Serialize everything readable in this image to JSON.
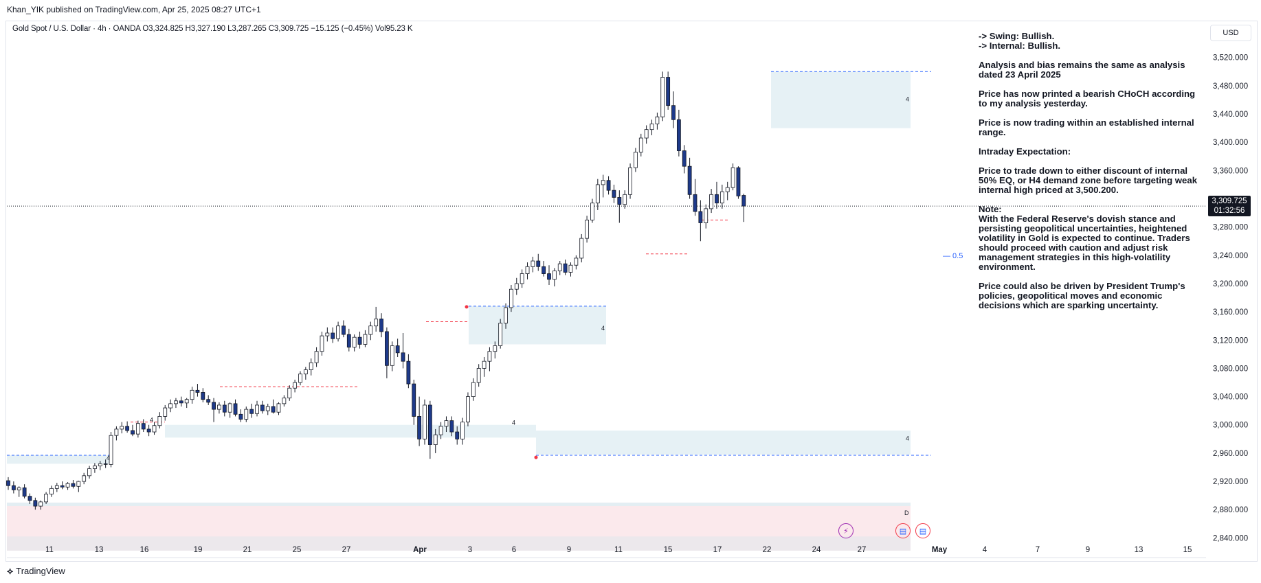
{
  "header": {
    "publisher_line": "Khan_YIK published on TradingView.com, Apr 25, 2025 08:27 UTC+1",
    "legend": "Gold Spot / U.S. Dollar · 4h · OANDA  O3,324.825  H3,327.190  L3,287.265  C3,309.725  −15.125 (−0.45%)  Vol95.23 K",
    "currency": "USD"
  },
  "price_tag": {
    "price": "3,309.725",
    "countdown": "01:32:56"
  },
  "notes": [
    "-> Swing:  Bullish.\n-> Internal:  Bullish.",
    "Analysis and bias remains the same as analysis dated 23 April 2025",
    "Price has now printed a bearish CHoCH according to my analysis yesterday.",
    "Price is now trading within an established internal range.",
    "Intraday Expectation:",
    "Price to trade down to either discount of internal 50% EQ, or H4 demand zone before targeting weak internal high priced at 3,500.200.",
    "Note:\nWith the Federal Reserve's dovish stance and persisting geopolitical uncertainties, heightened volatility in Gold is expected to continue. Traders should proceed with caution and adjust risk management strategies in this high-volatility environment.",
    "Price could also be driven by President Trump's policies, geopolitical moves and economic decisions which are sparking uncertainty."
  ],
  "footer": {
    "brand": "TradingView"
  },
  "colors": {
    "bull_body": "#ffffff",
    "bear_body": "#1e3a8a",
    "wick": "#131722",
    "zone": "#e6f1f5",
    "zone_pink": "#fbe9ec",
    "dashed_blue": "#2962ff",
    "dashed_red": "#f23645"
  },
  "chart_data": {
    "type": "candlestick",
    "symbol": "Gold Spot / U.S. Dollar",
    "timeframe": "4h",
    "y_ticks": [
      3520,
      3480,
      3440,
      3400,
      3360,
      3320,
      3280,
      3240,
      3200,
      3160,
      3120,
      3080,
      3040,
      3000,
      2960,
      2920,
      2880,
      2840
    ],
    "y_tick_labels": [
      "3,520.000",
      "3,480.000",
      "3,440.000",
      "3,400.000",
      "3,360.000",
      "3,320.000",
      "3,280.000",
      "3,240.000",
      "3,200.000",
      "3,160.000",
      "3,120.000",
      "3,080.000",
      "3,040.000",
      "3,000.000",
      "2,960.000",
      "2,920.000",
      "2,880.000",
      "2,840.000"
    ],
    "ylim": [
      2818,
      3545
    ],
    "x_tick_labels": [
      "11",
      "13",
      "16",
      "19",
      "21",
      "25",
      "27",
      "Apr",
      "3",
      "6",
      "9",
      "11",
      "15",
      "17",
      "22",
      "24",
      "27",
      "May",
      "4",
      "7",
      "9",
      "13",
      "15"
    ],
    "x_tick_bold": [
      "Apr",
      "May"
    ],
    "current_price": 3309.725,
    "annotations": {
      "eq_label": "0.5",
      "marker_4": "4",
      "marker_d": "D"
    },
    "candles": [
      {
        "o": 2921,
        "h": 2926,
        "l": 2908,
        "c": 2914
      },
      {
        "o": 2914,
        "h": 2920,
        "l": 2903,
        "c": 2908
      },
      {
        "o": 2908,
        "h": 2913,
        "l": 2898,
        "c": 2911
      },
      {
        "o": 2911,
        "h": 2916,
        "l": 2896,
        "c": 2899
      },
      {
        "o": 2899,
        "h": 2903,
        "l": 2888,
        "c": 2893
      },
      {
        "o": 2893,
        "h": 2897,
        "l": 2880,
        "c": 2885
      },
      {
        "o": 2885,
        "h": 2893,
        "l": 2880,
        "c": 2891
      },
      {
        "o": 2891,
        "h": 2905,
        "l": 2888,
        "c": 2902
      },
      {
        "o": 2902,
        "h": 2914,
        "l": 2898,
        "c": 2910
      },
      {
        "o": 2910,
        "h": 2918,
        "l": 2905,
        "c": 2914
      },
      {
        "o": 2914,
        "h": 2920,
        "l": 2909,
        "c": 2912
      },
      {
        "o": 2912,
        "h": 2919,
        "l": 2908,
        "c": 2917
      },
      {
        "o": 2917,
        "h": 2922,
        "l": 2910,
        "c": 2913
      },
      {
        "o": 2913,
        "h": 2921,
        "l": 2905,
        "c": 2920
      },
      {
        "o": 2920,
        "h": 2932,
        "l": 2916,
        "c": 2928
      },
      {
        "o": 2928,
        "h": 2942,
        "l": 2924,
        "c": 2938
      },
      {
        "o": 2938,
        "h": 2946,
        "l": 2932,
        "c": 2942
      },
      {
        "o": 2942,
        "h": 2949,
        "l": 2936,
        "c": 2945
      },
      {
        "o": 2945,
        "h": 2951,
        "l": 2939,
        "c": 2944
      },
      {
        "o": 2944,
        "h": 2990,
        "l": 2940,
        "c": 2985
      },
      {
        "o": 2985,
        "h": 2998,
        "l": 2978,
        "c": 2994
      },
      {
        "o": 2994,
        "h": 3004,
        "l": 2988,
        "c": 2998
      },
      {
        "o": 2998,
        "h": 3005,
        "l": 2989,
        "c": 2992
      },
      {
        "o": 2992,
        "h": 3000,
        "l": 2984,
        "c": 2987
      },
      {
        "o": 2987,
        "h": 3006,
        "l": 2982,
        "c": 3002
      },
      {
        "o": 3002,
        "h": 3008,
        "l": 2990,
        "c": 2994
      },
      {
        "o": 2994,
        "h": 3000,
        "l": 2984,
        "c": 2990
      },
      {
        "o": 2990,
        "h": 3004,
        "l": 2986,
        "c": 2999
      },
      {
        "o": 2999,
        "h": 3018,
        "l": 2995,
        "c": 3012
      },
      {
        "o": 3012,
        "h": 3028,
        "l": 3006,
        "c": 3024
      },
      {
        "o": 3024,
        "h": 3036,
        "l": 3018,
        "c": 3030
      },
      {
        "o": 3030,
        "h": 3038,
        "l": 3024,
        "c": 3034
      },
      {
        "o": 3034,
        "h": 3040,
        "l": 3026,
        "c": 3031
      },
      {
        "o": 3031,
        "h": 3038,
        "l": 3024,
        "c": 3036
      },
      {
        "o": 3036,
        "h": 3054,
        "l": 3030,
        "c": 3049
      },
      {
        "o": 3049,
        "h": 3058,
        "l": 3040,
        "c": 3046
      },
      {
        "o": 3046,
        "h": 3052,
        "l": 3032,
        "c": 3036
      },
      {
        "o": 3036,
        "h": 3042,
        "l": 3028,
        "c": 3032
      },
      {
        "o": 3032,
        "h": 3038,
        "l": 3004,
        "c": 3022
      },
      {
        "o": 3022,
        "h": 3032,
        "l": 3016,
        "c": 3028
      },
      {
        "o": 3028,
        "h": 3034,
        "l": 3012,
        "c": 3018
      },
      {
        "o": 3018,
        "h": 3032,
        "l": 3010,
        "c": 3030
      },
      {
        "o": 3030,
        "h": 3036,
        "l": 3012,
        "c": 3015
      },
      {
        "o": 3015,
        "h": 3022,
        "l": 3004,
        "c": 3008
      },
      {
        "o": 3008,
        "h": 3026,
        "l": 3004,
        "c": 3022
      },
      {
        "o": 3022,
        "h": 3030,
        "l": 3010,
        "c": 3016
      },
      {
        "o": 3016,
        "h": 3034,
        "l": 3012,
        "c": 3028
      },
      {
        "o": 3028,
        "h": 3034,
        "l": 3016,
        "c": 3020
      },
      {
        "o": 3020,
        "h": 3030,
        "l": 3014,
        "c": 3026
      },
      {
        "o": 3026,
        "h": 3036,
        "l": 3016,
        "c": 3018
      },
      {
        "o": 3018,
        "h": 3032,
        "l": 3014,
        "c": 3030
      },
      {
        "o": 3030,
        "h": 3042,
        "l": 3026,
        "c": 3038
      },
      {
        "o": 3038,
        "h": 3056,
        "l": 3034,
        "c": 3052
      },
      {
        "o": 3052,
        "h": 3064,
        "l": 3046,
        "c": 3060
      },
      {
        "o": 3060,
        "h": 3076,
        "l": 3056,
        "c": 3072
      },
      {
        "o": 3072,
        "h": 3082,
        "l": 3064,
        "c": 3078
      },
      {
        "o": 3078,
        "h": 3094,
        "l": 3070,
        "c": 3088
      },
      {
        "o": 3088,
        "h": 3110,
        "l": 3082,
        "c": 3104
      },
      {
        "o": 3104,
        "h": 3132,
        "l": 3098,
        "c": 3126
      },
      {
        "o": 3126,
        "h": 3138,
        "l": 3118,
        "c": 3130
      },
      {
        "o": 3130,
        "h": 3138,
        "l": 3116,
        "c": 3122
      },
      {
        "o": 3122,
        "h": 3146,
        "l": 3118,
        "c": 3140
      },
      {
        "o": 3140,
        "h": 3148,
        "l": 3124,
        "c": 3128
      },
      {
        "o": 3128,
        "h": 3136,
        "l": 3104,
        "c": 3110
      },
      {
        "o": 3110,
        "h": 3128,
        "l": 3104,
        "c": 3124
      },
      {
        "o": 3124,
        "h": 3132,
        "l": 3108,
        "c": 3114
      },
      {
        "o": 3114,
        "h": 3134,
        "l": 3110,
        "c": 3128
      },
      {
        "o": 3128,
        "h": 3146,
        "l": 3120,
        "c": 3140
      },
      {
        "o": 3140,
        "h": 3167,
        "l": 3132,
        "c": 3150
      },
      {
        "o": 3150,
        "h": 3158,
        "l": 3124,
        "c": 3132
      },
      {
        "o": 3132,
        "h": 3138,
        "l": 3066,
        "c": 3084
      },
      {
        "o": 3084,
        "h": 3118,
        "l": 3076,
        "c": 3112
      },
      {
        "o": 3112,
        "h": 3122,
        "l": 3096,
        "c": 3102
      },
      {
        "o": 3102,
        "h": 3130,
        "l": 3080,
        "c": 3090
      },
      {
        "o": 3090,
        "h": 3100,
        "l": 3052,
        "c": 3058
      },
      {
        "o": 3058,
        "h": 3064,
        "l": 3000,
        "c": 3012
      },
      {
        "o": 3012,
        "h": 3040,
        "l": 2970,
        "c": 2980
      },
      {
        "o": 2980,
        "h": 3036,
        "l": 2972,
        "c": 3028
      },
      {
        "o": 3028,
        "h": 3034,
        "l": 2952,
        "c": 2972
      },
      {
        "o": 2972,
        "h": 2994,
        "l": 2960,
        "c": 2986
      },
      {
        "o": 2986,
        "h": 3004,
        "l": 2980,
        "c": 2998
      },
      {
        "o": 2998,
        "h": 3012,
        "l": 2990,
        "c": 3006
      },
      {
        "o": 3006,
        "h": 3012,
        "l": 2984,
        "c": 2990
      },
      {
        "o": 2990,
        "h": 2998,
        "l": 2972,
        "c": 2980
      },
      {
        "o": 2980,
        "h": 3010,
        "l": 2972,
        "c": 3004
      },
      {
        "o": 3004,
        "h": 3046,
        "l": 2998,
        "c": 3040
      },
      {
        "o": 3040,
        "h": 3066,
        "l": 3034,
        "c": 3060
      },
      {
        "o": 3060,
        "h": 3086,
        "l": 3054,
        "c": 3080
      },
      {
        "o": 3080,
        "h": 3096,
        "l": 3068,
        "c": 3090
      },
      {
        "o": 3090,
        "h": 3110,
        "l": 3076,
        "c": 3104
      },
      {
        "o": 3104,
        "h": 3118,
        "l": 3094,
        "c": 3112
      },
      {
        "o": 3112,
        "h": 3150,
        "l": 3108,
        "c": 3144
      },
      {
        "o": 3144,
        "h": 3172,
        "l": 3136,
        "c": 3166
      },
      {
        "o": 3166,
        "h": 3198,
        "l": 3160,
        "c": 3192
      },
      {
        "o": 3192,
        "h": 3208,
        "l": 3184,
        "c": 3200
      },
      {
        "o": 3200,
        "h": 3220,
        "l": 3194,
        "c": 3214
      },
      {
        "o": 3214,
        "h": 3230,
        "l": 3206,
        "c": 3224
      },
      {
        "o": 3224,
        "h": 3238,
        "l": 3216,
        "c": 3232
      },
      {
        "o": 3232,
        "h": 3242,
        "l": 3218,
        "c": 3224
      },
      {
        "o": 3224,
        "h": 3232,
        "l": 3210,
        "c": 3214
      },
      {
        "o": 3214,
        "h": 3226,
        "l": 3198,
        "c": 3206
      },
      {
        "o": 3206,
        "h": 3222,
        "l": 3196,
        "c": 3218
      },
      {
        "o": 3218,
        "h": 3232,
        "l": 3212,
        "c": 3228
      },
      {
        "o": 3228,
        "h": 3234,
        "l": 3212,
        "c": 3216
      },
      {
        "o": 3216,
        "h": 3230,
        "l": 3210,
        "c": 3226
      },
      {
        "o": 3226,
        "h": 3240,
        "l": 3220,
        "c": 3236
      },
      {
        "o": 3236,
        "h": 3270,
        "l": 3230,
        "c": 3264
      },
      {
        "o": 3264,
        "h": 3296,
        "l": 3258,
        "c": 3290
      },
      {
        "o": 3290,
        "h": 3320,
        "l": 3286,
        "c": 3314
      },
      {
        "o": 3314,
        "h": 3348,
        "l": 3304,
        "c": 3340
      },
      {
        "o": 3340,
        "h": 3354,
        "l": 3322,
        "c": 3346
      },
      {
        "o": 3346,
        "h": 3352,
        "l": 3326,
        "c": 3332
      },
      {
        "o": 3332,
        "h": 3340,
        "l": 3314,
        "c": 3322
      },
      {
        "o": 3322,
        "h": 3332,
        "l": 3286,
        "c": 3312
      },
      {
        "o": 3312,
        "h": 3332,
        "l": 3306,
        "c": 3326
      },
      {
        "o": 3326,
        "h": 3370,
        "l": 3320,
        "c": 3364
      },
      {
        "o": 3364,
        "h": 3392,
        "l": 3358,
        "c": 3386
      },
      {
        "o": 3386,
        "h": 3412,
        "l": 3380,
        "c": 3406
      },
      {
        "o": 3406,
        "h": 3424,
        "l": 3398,
        "c": 3418
      },
      {
        "o": 3418,
        "h": 3432,
        "l": 3410,
        "c": 3426
      },
      {
        "o": 3426,
        "h": 3442,
        "l": 3418,
        "c": 3436
      },
      {
        "o": 3436,
        "h": 3500,
        "l": 3430,
        "c": 3492
      },
      {
        "o": 3492,
        "h": 3500,
        "l": 3446,
        "c": 3452
      },
      {
        "o": 3452,
        "h": 3472,
        "l": 3420,
        "c": 3432
      },
      {
        "o": 3432,
        "h": 3446,
        "l": 3380,
        "c": 3388
      },
      {
        "o": 3388,
        "h": 3396,
        "l": 3356,
        "c": 3366
      },
      {
        "o": 3366,
        "h": 3378,
        "l": 3320,
        "c": 3326
      },
      {
        "o": 3326,
        "h": 3348,
        "l": 3296,
        "c": 3302
      },
      {
        "o": 3302,
        "h": 3318,
        "l": 3260,
        "c": 3286
      },
      {
        "o": 3286,
        "h": 3312,
        "l": 3278,
        "c": 3306
      },
      {
        "o": 3306,
        "h": 3334,
        "l": 3300,
        "c": 3326
      },
      {
        "o": 3326,
        "h": 3344,
        "l": 3306,
        "c": 3314
      },
      {
        "o": 3314,
        "h": 3340,
        "l": 3306,
        "c": 3330
      },
      {
        "o": 3330,
        "h": 3344,
        "l": 3318,
        "c": 3336
      },
      {
        "o": 3336,
        "h": 3370,
        "l": 3332,
        "c": 3364
      },
      {
        "o": 3364,
        "h": 3366,
        "l": 3320,
        "c": 3324
      },
      {
        "o": 3324.825,
        "h": 3327.19,
        "l": 3287.265,
        "c": 3309.725
      }
    ]
  }
}
